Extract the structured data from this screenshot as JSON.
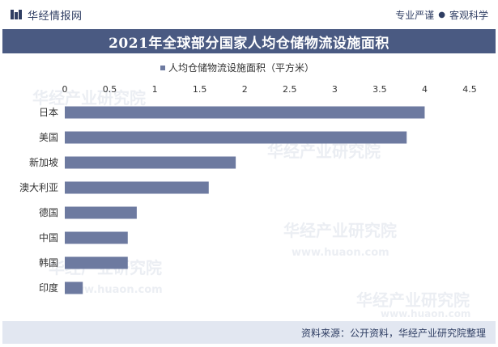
{
  "header": {
    "brand": "华经情报网",
    "slogan_left": "专业严谨",
    "slogan_right": "客观科学"
  },
  "watermark": {
    "name": "华经产业研究院",
    "url": "www.huaon.com"
  },
  "chart_data": {
    "type": "bar",
    "orientation": "horizontal",
    "title": "2021年全球部分国家人均仓储物流设施面积",
    "categories": [
      "日本",
      "美国",
      "新加坡",
      "澳大利亚",
      "德国",
      "中国",
      "韩国",
      "印度"
    ],
    "series": [
      {
        "name": "人均仓储物流设施面积（平方米）",
        "values": [
          4.0,
          3.8,
          1.9,
          1.6,
          0.8,
          0.7,
          0.7,
          0.2
        ]
      }
    ],
    "xlim": [
      0,
      4.5
    ],
    "xticks": [
      "0",
      "0.5",
      "1",
      "1.5",
      "2",
      "2.5",
      "3",
      "3.5",
      "4",
      "4.5"
    ],
    "legend_position": "top",
    "grid": false,
    "bar_color": "#6d7aa0"
  },
  "footer": {
    "source": "资料来源：公开资料，华经产业研究院整理"
  }
}
